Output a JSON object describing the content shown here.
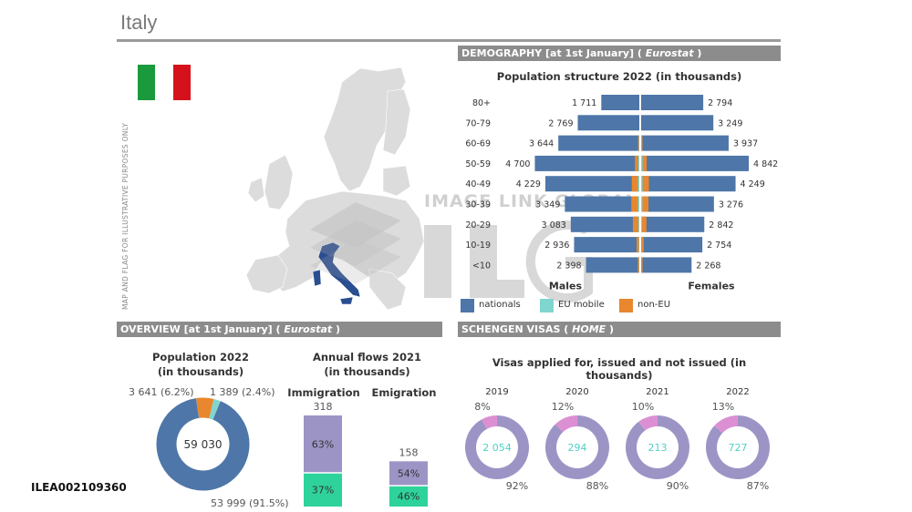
{
  "page": {
    "title": "Italy",
    "image_code": "ILEA002109360"
  },
  "map": {
    "disclaimer": "MAP AND FLAG FOR ILLUSTRATIVE PURPOSES ONLY",
    "flag_colors": [
      "#1a9a3c",
      "#ffffff",
      "#d5121c"
    ],
    "highlight_color": "#2a4e90"
  },
  "watermark": {
    "text": "IMAGE LINK GLOBAL",
    "logo_text": "ILG"
  },
  "sections": {
    "demography": {
      "label": "DEMOGRAPHY [at 1st January]",
      "source": "Eurostat"
    },
    "overview": {
      "label": "OVERVIEW [at 1st January]",
      "source": "Eurostat"
    },
    "schengen": {
      "label": "SCHENGEN VISAS",
      "source": "HOME"
    }
  },
  "colors": {
    "nationals": "#4e76a8",
    "eu_mobile": "#7fd6cf",
    "non_eu": "#e8872e",
    "purple": "#9d94c6",
    "green": "#2ed39b",
    "pink": "#dc8fd3",
    "teal_text": "#4fd0c8"
  },
  "chart_data": [
    {
      "type": "bar",
      "id": "pyramid",
      "title": "Population structure 2022 (in thousands)",
      "categories": [
        "80+",
        "70-79",
        "60-69",
        "50-59",
        "40-49",
        "30-39",
        "20-29",
        "10-19",
        "<10"
      ],
      "males_total": [
        1711,
        2769,
        3644,
        4700,
        4229,
        3349,
        3083,
        2936,
        2398
      ],
      "females_total": [
        2794,
        3249,
        3937,
        4842,
        4249,
        3276,
        2842,
        2754,
        2268
      ],
      "males_labels": [
        "1 711",
        "2 769",
        "3 644",
        "4 700",
        "4 229",
        "3 349",
        "3 083",
        "2 936",
        "2 398"
      ],
      "females_labels": [
        "2 794",
        "3 249",
        "3 937",
        "4 842",
        "4 249",
        "3 276",
        "2 842",
        "2 754",
        "2 268"
      ],
      "males_non_eu": [
        0,
        0,
        40,
        150,
        280,
        300,
        250,
        110,
        60
      ],
      "males_eu_mobile": [
        0,
        0,
        15,
        50,
        60,
        60,
        40,
        15,
        10
      ],
      "females_non_eu": [
        0,
        0,
        40,
        180,
        280,
        270,
        200,
        100,
        55
      ],
      "females_eu_mobile": [
        0,
        0,
        20,
        70,
        70,
        60,
        40,
        15,
        10
      ],
      "xlabel_left": "Males",
      "xlabel_right": "Females",
      "legend": [
        "nationals",
        "EU mobile",
        "non-EU"
      ],
      "legend_position": "bottom"
    },
    {
      "type": "pie",
      "id": "population",
      "title": "Population 2022",
      "subtitle": "(in thousands)",
      "center_label": "59 030",
      "values": [
        53999,
        3641,
        1389
      ],
      "series": [
        "nationals",
        "non-EU",
        "EU mobile"
      ],
      "labels": [
        "53 999 (91.5%)",
        "3 641 (6.2%)",
        "1 389 (2.4%)"
      ]
    },
    {
      "type": "bar",
      "id": "flows",
      "title": "Annual flows 2021",
      "subtitle": "(in thousands)",
      "categories": [
        "Immigration",
        "Emigration"
      ],
      "totals": [
        318,
        158
      ],
      "total_labels": [
        "318",
        "158"
      ],
      "shares": [
        [
          63,
          37
        ],
        [
          54,
          46
        ]
      ],
      "share_labels": [
        [
          "63%",
          "37%"
        ],
        [
          "54%",
          "46%"
        ]
      ]
    },
    {
      "type": "pie",
      "id": "visas",
      "title": "Visas applied for, issued and not issued (in thousands)",
      "years": [
        "2019",
        "2020",
        "2021",
        "2022"
      ],
      "applied": [
        "2 054",
        "294",
        "213",
        "727"
      ],
      "issued_pct": [
        92,
        88,
        90,
        87
      ],
      "not_issued_pct": [
        8,
        12,
        10,
        13
      ],
      "issued_labels": [
        "92%",
        "88%",
        "90%",
        "87%"
      ],
      "not_issued_labels": [
        "8%",
        "12%",
        "10%",
        "13%"
      ]
    }
  ]
}
